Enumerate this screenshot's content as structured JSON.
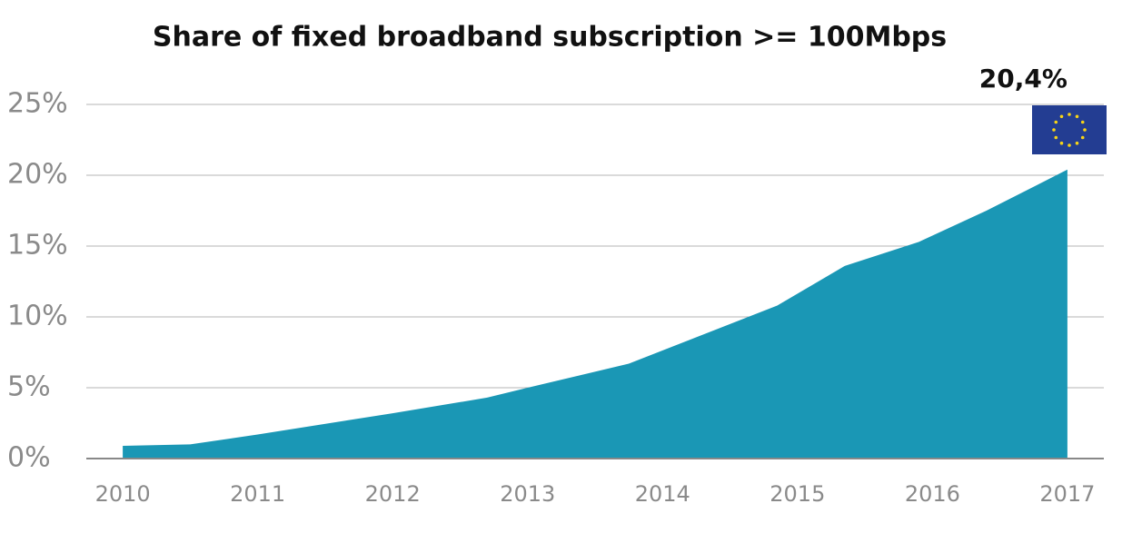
{
  "chart_data": {
    "type": "area",
    "title": "Share of fixed broadband subscription >= 100Mbps",
    "x": [
      2010,
      2010.5,
      2011,
      2012,
      2012.7,
      2013,
      2013.75,
      2014.85,
      2015.35,
      2015.9,
      2016.4,
      2017
    ],
    "values": [
      0.9,
      1.0,
      1.7,
      3.2,
      4.3,
      5.0,
      6.7,
      10.8,
      13.6,
      15.3,
      17.5,
      20.4
    ],
    "value_labels": [
      null,
      null,
      null,
      null,
      null,
      null,
      null,
      null,
      null,
      null,
      null,
      "20,4%"
    ],
    "color": "#1a97b5",
    "xlim": [
      2009.73,
      2017.27
    ],
    "xticks": [
      2010,
      2011,
      2012,
      2013,
      2014,
      2015,
      2016,
      2017
    ],
    "ylim": [
      0,
      25
    ],
    "yticks": [
      {
        "value": 0,
        "label": "0%"
      },
      {
        "value": 5,
        "label": "5%"
      },
      {
        "value": 10,
        "label": "10%"
      },
      {
        "value": 15,
        "label": "15%"
      },
      {
        "value": 20,
        "label": "20%"
      },
      {
        "value": 25,
        "label": "25%"
      }
    ],
    "grid": true
  }
}
